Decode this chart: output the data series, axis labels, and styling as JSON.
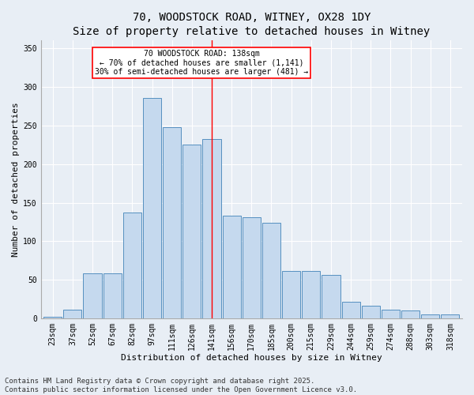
{
  "title": "70, WOODSTOCK ROAD, WITNEY, OX28 1DY",
  "subtitle": "Size of property relative to detached houses in Witney",
  "xlabel": "Distribution of detached houses by size in Witney",
  "ylabel": "Number of detached properties",
  "categories": [
    "23sqm",
    "37sqm",
    "52sqm",
    "67sqm",
    "82sqm",
    "97sqm",
    "111sqm",
    "126sqm",
    "141sqm",
    "156sqm",
    "170sqm",
    "185sqm",
    "200sqm",
    "215sqm",
    "229sqm",
    "244sqm",
    "259sqm",
    "274sqm",
    "288sqm",
    "303sqm",
    "318sqm"
  ],
  "bar_heights": [
    2,
    11,
    59,
    59,
    137,
    286,
    248,
    225,
    232,
    133,
    131,
    124,
    62,
    62,
    57,
    22,
    17,
    11,
    10,
    5,
    5
  ],
  "bar_color": "#c5d9ee",
  "bar_edge_color": "#5590c0",
  "vline_x_index": 8,
  "vline_color": "red",
  "annotation_title": "70 WOODSTOCK ROAD: 138sqm",
  "annotation_line1": "← 70% of detached houses are smaller (1,141)",
  "annotation_line2": "30% of semi-detached houses are larger (481) →",
  "annotation_box_color": "white",
  "annotation_box_edge_color": "red",
  "footer1": "Contains HM Land Registry data © Crown copyright and database right 2025.",
  "footer2": "Contains public sector information licensed under the Open Government Licence v3.0.",
  "bg_color": "#e8eef5",
  "ylim": [
    0,
    360
  ],
  "yticks": [
    0,
    50,
    100,
    150,
    200,
    250,
    300,
    350
  ],
  "title_fontsize": 10,
  "xlabel_fontsize": 8,
  "ylabel_fontsize": 8,
  "tick_fontsize": 7,
  "annot_fontsize": 7,
  "footer_fontsize": 6.5
}
